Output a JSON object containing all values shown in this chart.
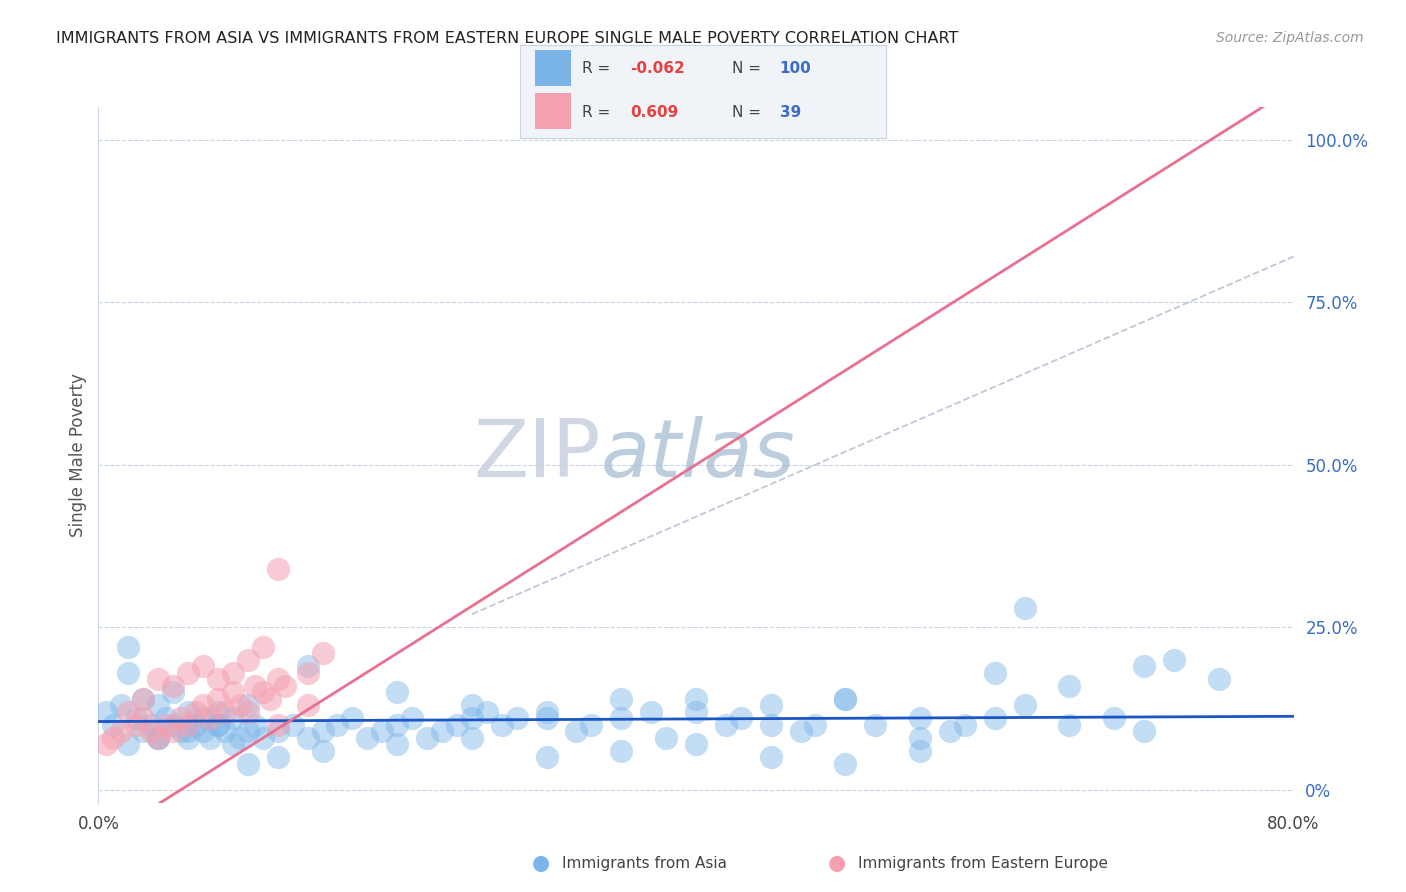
{
  "title": "IMMIGRANTS FROM ASIA VS IMMIGRANTS FROM EASTERN EUROPE SINGLE MALE POVERTY CORRELATION CHART",
  "source": "Source: ZipAtlas.com",
  "ylabel": "Single Male Poverty",
  "right_ytick_labels": [
    "0%",
    "25.0%",
    "50.0%",
    "75.0%",
    "100.0%"
  ],
  "right_ytick_vals": [
    0.0,
    0.25,
    0.5,
    0.75,
    1.0
  ],
  "xmin": 0.0,
  "xmax": 0.8,
  "ymin": -0.02,
  "ymax": 1.05,
  "asia_R": -0.062,
  "asia_N": 100,
  "eastern_R": 0.609,
  "eastern_N": 39,
  "asia_color": "#7ab4e8",
  "eastern_color": "#f4a0b0",
  "asia_line_color": "#1a56c4",
  "eastern_line_color": "#e87090",
  "dashed_line_color": "#c0c8d8",
  "background_color": "#ffffff",
  "watermark_zip_color": "#c8cfe0",
  "watermark_atlas_color": "#a8c0d8",
  "legend_bg_color": "#f0f4f8",
  "legend_border_color": "#c8d4e4",
  "value_color_red": "#e84040",
  "value_color_blue": "#3a6cc8",
  "asia_line_slope": 0.01,
  "asia_line_intercept": 0.105,
  "eastern_line_slope": 1.45,
  "eastern_line_intercept": -0.08,
  "dashed_slope": 1.0,
  "dashed_intercept": 0.02,
  "dashed_xstart": 0.25,
  "asia_scatter_x": [
    0.005,
    0.01,
    0.015,
    0.02,
    0.02,
    0.025,
    0.03,
    0.03,
    0.035,
    0.04,
    0.04,
    0.045,
    0.05,
    0.05,
    0.055,
    0.06,
    0.06,
    0.065,
    0.07,
    0.07,
    0.075,
    0.08,
    0.08,
    0.085,
    0.09,
    0.09,
    0.095,
    0.1,
    0.1,
    0.105,
    0.11,
    0.12,
    0.13,
    0.14,
    0.15,
    0.16,
    0.17,
    0.18,
    0.19,
    0.2,
    0.21,
    0.22,
    0.23,
    0.24,
    0.25,
    0.26,
    0.27,
    0.28,
    0.3,
    0.32,
    0.33,
    0.35,
    0.37,
    0.38,
    0.4,
    0.42,
    0.43,
    0.45,
    0.47,
    0.48,
    0.5,
    0.52,
    0.55,
    0.57,
    0.58,
    0.6,
    0.62,
    0.65,
    0.68,
    0.7,
    0.14,
    0.2,
    0.25,
    0.3,
    0.35,
    0.4,
    0.45,
    0.5,
    0.55,
    0.6,
    0.65,
    0.7,
    0.2,
    0.25,
    0.3,
    0.35,
    0.4,
    0.45,
    0.5,
    0.55,
    0.02,
    0.04,
    0.06,
    0.08,
    0.1,
    0.12,
    0.15,
    0.62,
    0.72,
    0.75
  ],
  "asia_scatter_y": [
    0.12,
    0.1,
    0.13,
    0.22,
    0.18,
    0.11,
    0.09,
    0.14,
    0.1,
    0.08,
    0.13,
    0.11,
    0.1,
    0.15,
    0.09,
    0.08,
    0.12,
    0.1,
    0.09,
    0.11,
    0.08,
    0.1,
    0.12,
    0.09,
    0.07,
    0.11,
    0.08,
    0.09,
    0.13,
    0.1,
    0.08,
    0.09,
    0.1,
    0.08,
    0.09,
    0.1,
    0.11,
    0.08,
    0.09,
    0.1,
    0.11,
    0.08,
    0.09,
    0.1,
    0.11,
    0.12,
    0.1,
    0.11,
    0.12,
    0.09,
    0.1,
    0.11,
    0.12,
    0.08,
    0.14,
    0.1,
    0.11,
    0.13,
    0.09,
    0.1,
    0.14,
    0.1,
    0.11,
    0.09,
    0.1,
    0.11,
    0.13,
    0.1,
    0.11,
    0.09,
    0.19,
    0.15,
    0.13,
    0.11,
    0.14,
    0.12,
    0.1,
    0.14,
    0.08,
    0.18,
    0.16,
    0.19,
    0.07,
    0.08,
    0.05,
    0.06,
    0.07,
    0.05,
    0.04,
    0.06,
    0.07,
    0.08,
    0.09,
    0.1,
    0.04,
    0.05,
    0.06,
    0.28,
    0.2,
    0.17
  ],
  "eastern_scatter_x": [
    0.005,
    0.01,
    0.015,
    0.02,
    0.025,
    0.03,
    0.035,
    0.04,
    0.045,
    0.05,
    0.055,
    0.06,
    0.065,
    0.07,
    0.075,
    0.08,
    0.085,
    0.09,
    0.095,
    0.1,
    0.105,
    0.11,
    0.115,
    0.12,
    0.125,
    0.03,
    0.04,
    0.05,
    0.06,
    0.07,
    0.08,
    0.09,
    0.1,
    0.11,
    0.12,
    0.14,
    0.15,
    0.12,
    0.14
  ],
  "eastern_scatter_y": [
    0.07,
    0.08,
    0.09,
    0.12,
    0.1,
    0.11,
    0.09,
    0.08,
    0.1,
    0.09,
    0.11,
    0.1,
    0.12,
    0.13,
    0.11,
    0.14,
    0.12,
    0.15,
    0.13,
    0.12,
    0.16,
    0.15,
    0.14,
    0.17,
    0.16,
    0.14,
    0.17,
    0.16,
    0.18,
    0.19,
    0.17,
    0.18,
    0.2,
    0.22,
    0.34,
    0.18,
    0.21,
    0.1,
    0.13
  ]
}
